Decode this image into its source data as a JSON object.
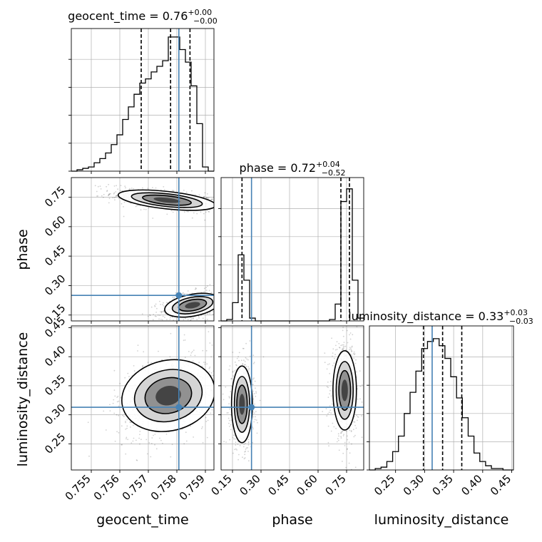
{
  "chart_data": {
    "type": "corner",
    "parameters": [
      "geocent_time",
      "phase",
      "luminosity_distance"
    ],
    "truths": {
      "geocent_time": 0.75807,
      "phase": 0.25,
      "luminosity_distance": 0.313
    },
    "colors": {
      "truth": "#4682b4",
      "hist": "#000000",
      "grid": "#b0b0b0",
      "quantile": "#000000"
    },
    "grid": true,
    "diagonal": [
      {
        "parameter": "geocent_time",
        "title_main": "geocent_time = 0.76",
        "title_sup": "+0.00",
        "title_sub": "−0.00",
        "range": [
          0.7543,
          0.7593
        ],
        "ylim": [
          0,
          1
        ],
        "quantiles": [
          0.75675,
          0.75778,
          0.75846
        ],
        "bin_edges": [
          0.7543,
          0.7545,
          0.7547,
          0.7549,
          0.7551,
          0.7553,
          0.7555,
          0.7557,
          0.7559,
          0.7561,
          0.7563,
          0.7565,
          0.7567,
          0.7569,
          0.7571,
          0.7573,
          0.7575,
          0.7577,
          0.7579,
          0.7581,
          0.7583,
          0.7585,
          0.7587,
          0.7589,
          0.7591,
          0.7593
        ],
        "counts": [
          0.0,
          0.01,
          0.02,
          0.03,
          0.06,
          0.09,
          0.13,
          0.19,
          0.26,
          0.37,
          0.46,
          0.55,
          0.63,
          0.66,
          0.71,
          0.75,
          0.79,
          0.96,
          0.96,
          0.87,
          0.78,
          0.61,
          0.34,
          0.03,
          0.0
        ]
      },
      {
        "parameter": "phase",
        "title_main": "phase = 0.72",
        "title_sup": "+0.04",
        "title_sub": "−0.52",
        "range": [
          0.09,
          0.84
        ],
        "ylim": [
          0,
          1
        ],
        "quantiles": [
          0.2,
          0.72,
          0.765
        ],
        "bin_edges": [
          0.09,
          0.12,
          0.15,
          0.18,
          0.21,
          0.24,
          0.27,
          0.3,
          0.33,
          0.36,
          0.39,
          0.42,
          0.45,
          0.48,
          0.51,
          0.54,
          0.57,
          0.6,
          0.63,
          0.66,
          0.69,
          0.72,
          0.75,
          0.78,
          0.81,
          0.84
        ],
        "counts": [
          0.0,
          0.01,
          0.13,
          0.47,
          0.29,
          0.02,
          0.0,
          0.0,
          0.0,
          0.0,
          0.0,
          0.0,
          0.0,
          0.0,
          0.0,
          0.0,
          0.0,
          0.0,
          0.0,
          0.01,
          0.12,
          0.85,
          0.94,
          0.29,
          0.02
        ]
      },
      {
        "parameter": "luminosity_distance",
        "title_main": "luminosity_distance = 0.33",
        "title_sup": "+0.03",
        "title_sub": "−0.03",
        "range": [
          0.205,
          0.453
        ],
        "ylim": [
          0,
          1
        ],
        "quantiles": [
          0.298,
          0.331,
          0.364
        ],
        "bin_edges": [
          0.205,
          0.215,
          0.225,
          0.235,
          0.245,
          0.255,
          0.265,
          0.275,
          0.285,
          0.295,
          0.305,
          0.315,
          0.325,
          0.335,
          0.345,
          0.355,
          0.365,
          0.375,
          0.385,
          0.395,
          0.405,
          0.415,
          0.425,
          0.435,
          0.445,
          0.453
        ],
        "counts": [
          0.0,
          0.01,
          0.02,
          0.06,
          0.13,
          0.24,
          0.4,
          0.55,
          0.7,
          0.86,
          0.91,
          0.93,
          0.88,
          0.79,
          0.66,
          0.51,
          0.37,
          0.24,
          0.12,
          0.06,
          0.03,
          0.01,
          0.01,
          0.0,
          0.0
        ]
      }
    ],
    "pairs": [
      {
        "x": "geocent_time",
        "y": "phase",
        "xlim": [
          0.7543,
          0.7593
        ],
        "ylim": [
          0.12,
          0.85
        ],
        "modes": [
          {
            "cx": 0.75765,
            "cy": 0.735,
            "sx": 0.00078,
            "sy": 0.025,
            "rho": -0.55
          },
          {
            "cx": 0.75855,
            "cy": 0.2,
            "sx": 0.00045,
            "sy": 0.03,
            "rho": 0.45
          }
        ]
      },
      {
        "x": "geocent_time",
        "y": "luminosity_distance",
        "xlim": [
          0.7543,
          0.7593
        ],
        "ylim": [
          0.205,
          0.453
        ],
        "modes": [
          {
            "cx": 0.7577,
            "cy": 0.333,
            "sx": 0.00075,
            "sy": 0.031,
            "rho": 0.32
          }
        ]
      },
      {
        "x": "phase",
        "y": "luminosity_distance",
        "xlim": [
          0.09,
          0.84
        ],
        "ylim": [
          0.205,
          0.453
        ],
        "modes": [
          {
            "cx": 0.2,
            "cy": 0.318,
            "sx": 0.025,
            "sy": 0.03,
            "rho": 0.0
          },
          {
            "cx": 0.74,
            "cy": 0.342,
            "sx": 0.028,
            "sy": 0.031,
            "rho": 0.0
          }
        ]
      }
    ],
    "ticks": {
      "geocent_time": [
        "0.755",
        "0.756",
        "0.757",
        "0.758",
        "0.759"
      ],
      "phase": [
        "0.15",
        "0.30",
        "0.45",
        "0.60",
        "0.75"
      ],
      "luminosity_distance": [
        "0.25",
        "0.30",
        "0.35",
        "0.40",
        "0.45"
      ]
    },
    "axis_labels": {
      "geocent_time": "geocent_time",
      "phase": "phase",
      "luminosity_distance": "luminosity_distance"
    }
  }
}
